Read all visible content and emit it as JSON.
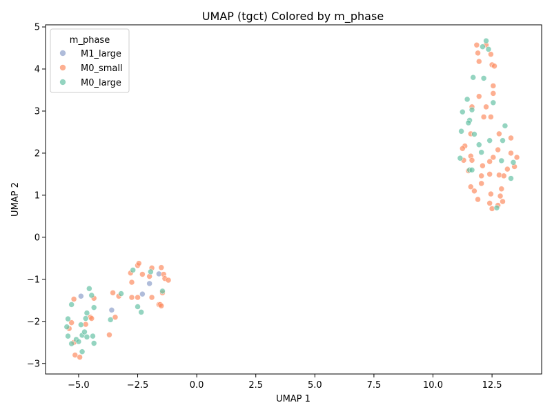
{
  "chart_data": {
    "type": "scatter",
    "title": "UMAP (tgct) Colored by m_phase",
    "xlabel": "UMAP 1",
    "ylabel": "UMAP 2",
    "xlim": [
      -6.4,
      14.6
    ],
    "ylim": [
      -3.25,
      5.05
    ],
    "xticks": [
      -5.0,
      -2.5,
      0.0,
      2.5,
      5.0,
      7.5,
      10.0,
      12.5
    ],
    "xtick_labels": [
      "−5.0",
      "−2.5",
      "0.0",
      "2.5",
      "5.0",
      "7.5",
      "10.0",
      "12.5"
    ],
    "yticks": [
      -3,
      -2,
      -1,
      0,
      1,
      2,
      3,
      4,
      5
    ],
    "ytick_labels": [
      "−3",
      "−2",
      "−1",
      "0",
      "1",
      "2",
      "3",
      "4",
      "5"
    ],
    "grid": false,
    "legend": {
      "title": "m_phase",
      "position": "top-left"
    },
    "series": [
      {
        "name": "M1_large",
        "color": "#8da0cb",
        "points": [
          [
            -4.9,
            -1.4
          ],
          [
            -3.6,
            -1.73
          ],
          [
            -2.3,
            -1.35
          ],
          [
            -2.0,
            -1.1
          ],
          [
            -1.6,
            -0.87
          ]
        ]
      },
      {
        "name": "M0_small",
        "color": "#fc8d62",
        "points": [
          [
            -5.2,
            -1.47
          ],
          [
            -5.3,
            -2.03
          ],
          [
            -5.4,
            -2.17
          ],
          [
            -5.15,
            -2.8
          ],
          [
            -4.95,
            -2.85
          ],
          [
            -5.2,
            -2.5
          ],
          [
            -4.7,
            -2.07
          ],
          [
            -4.5,
            -1.9
          ],
          [
            -4.45,
            -1.93
          ],
          [
            -4.35,
            -1.45
          ],
          [
            -3.7,
            -2.32
          ],
          [
            -3.55,
            -1.32
          ],
          [
            -3.45,
            -1.9
          ],
          [
            -3.3,
            -1.4
          ],
          [
            -2.8,
            -0.85
          ],
          [
            -2.75,
            -1.07
          ],
          [
            -2.75,
            -1.43
          ],
          [
            -2.5,
            -0.67
          ],
          [
            -2.45,
            -0.62
          ],
          [
            -2.5,
            -1.43
          ],
          [
            -2.3,
            -0.88
          ],
          [
            -2.0,
            -0.93
          ],
          [
            -1.9,
            -0.73
          ],
          [
            -1.9,
            -1.43
          ],
          [
            -1.6,
            -1.6
          ],
          [
            -1.55,
            -1.6
          ],
          [
            -1.5,
            -0.72
          ],
          [
            -1.5,
            -1.63
          ],
          [
            -1.45,
            -1.32
          ],
          [
            -1.4,
            -0.88
          ],
          [
            -1.35,
            -0.98
          ],
          [
            -1.2,
            -1.02
          ],
          [
            11.85,
            4.57
          ],
          [
            11.9,
            4.38
          ],
          [
            11.95,
            4.18
          ],
          [
            12.25,
            4.57
          ],
          [
            12.45,
            4.35
          ],
          [
            12.5,
            4.1
          ],
          [
            12.6,
            4.07
          ],
          [
            12.55,
            3.6
          ],
          [
            12.55,
            3.42
          ],
          [
            11.95,
            3.35
          ],
          [
            11.65,
            3.1
          ],
          [
            12.25,
            3.1
          ],
          [
            12.15,
            2.86
          ],
          [
            12.45,
            2.86
          ],
          [
            11.6,
            2.46
          ],
          [
            12.8,
            2.46
          ],
          [
            13.3,
            2.36
          ],
          [
            11.35,
            2.17
          ],
          [
            11.25,
            2.11
          ],
          [
            12.75,
            2.08
          ],
          [
            13.3,
            2.0
          ],
          [
            11.6,
            1.93
          ],
          [
            12.55,
            1.9
          ],
          [
            13.55,
            1.9
          ],
          [
            11.3,
            1.83
          ],
          [
            11.65,
            1.83
          ],
          [
            12.4,
            1.8
          ],
          [
            13.45,
            1.68
          ],
          [
            12.1,
            1.7
          ],
          [
            13.15,
            1.62
          ],
          [
            11.5,
            1.58
          ],
          [
            12.4,
            1.5
          ],
          [
            12.8,
            1.48
          ],
          [
            12.05,
            1.46
          ],
          [
            13.0,
            1.46
          ],
          [
            12.05,
            1.28
          ],
          [
            11.6,
            1.2
          ],
          [
            11.75,
            1.1
          ],
          [
            12.9,
            1.15
          ],
          [
            12.45,
            1.03
          ],
          [
            12.85,
            0.98
          ],
          [
            11.9,
            0.9
          ],
          [
            12.95,
            0.85
          ],
          [
            12.4,
            0.81
          ],
          [
            12.75,
            0.76
          ],
          [
            12.5,
            0.68
          ]
        ]
      },
      {
        "name": "M0_large",
        "color": "#66c2a5",
        "points": [
          [
            -5.3,
            -1.6
          ],
          [
            -5.45,
            -1.94
          ],
          [
            -5.5,
            -2.13
          ],
          [
            -5.45,
            -2.35
          ],
          [
            -5.3,
            -2.53
          ],
          [
            -5.1,
            -2.43
          ],
          [
            -5.0,
            -2.48
          ],
          [
            -4.85,
            -2.72
          ],
          [
            -4.85,
            -2.33
          ],
          [
            -4.75,
            -2.25
          ],
          [
            -4.65,
            -2.37
          ],
          [
            -4.7,
            -1.93
          ],
          [
            -4.65,
            -1.8
          ],
          [
            -4.9,
            -2.08
          ],
          [
            -4.55,
            -1.22
          ],
          [
            -4.45,
            -1.38
          ],
          [
            -4.35,
            -1.67
          ],
          [
            -4.4,
            -2.35
          ],
          [
            -4.35,
            -2.52
          ],
          [
            -3.65,
            -1.96
          ],
          [
            -3.2,
            -1.34
          ],
          [
            -2.7,
            -0.78
          ],
          [
            -2.5,
            -1.65
          ],
          [
            -2.35,
            -1.78
          ],
          [
            -1.95,
            -0.82
          ],
          [
            -1.45,
            -1.28
          ],
          [
            12.25,
            4.67
          ],
          [
            12.1,
            4.53
          ],
          [
            12.35,
            4.47
          ],
          [
            11.7,
            3.8
          ],
          [
            12.15,
            3.78
          ],
          [
            11.45,
            3.28
          ],
          [
            12.55,
            3.2
          ],
          [
            11.65,
            3.03
          ],
          [
            11.25,
            2.98
          ],
          [
            11.55,
            2.78
          ],
          [
            11.5,
            2.72
          ],
          [
            13.05,
            2.65
          ],
          [
            11.2,
            2.52
          ],
          [
            11.75,
            2.45
          ],
          [
            12.4,
            2.3
          ],
          [
            12.95,
            2.3
          ],
          [
            11.95,
            2.2
          ],
          [
            12.05,
            2.02
          ],
          [
            11.15,
            1.88
          ],
          [
            12.9,
            1.82
          ],
          [
            13.4,
            1.78
          ],
          [
            11.55,
            1.6
          ],
          [
            11.65,
            1.6
          ],
          [
            13.3,
            1.4
          ],
          [
            12.7,
            0.7
          ]
        ]
      }
    ]
  }
}
